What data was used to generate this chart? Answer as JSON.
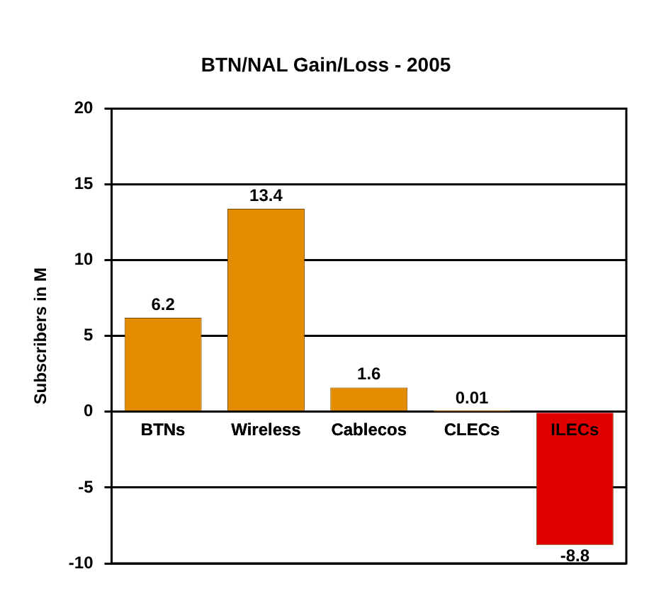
{
  "chart_data": {
    "type": "bar",
    "title": "BTN/NAL Gain/Loss - 2005",
    "ylabel": "Subscribers in M",
    "categories": [
      "BTNs",
      "Wireless",
      "Cablecos",
      "CLECs",
      "ILECs"
    ],
    "values": [
      6.2,
      13.4,
      1.6,
      0.01,
      -8.8
    ],
    "colors": [
      "#e38c00",
      "#e38c00",
      "#e38c00",
      "#e38c00",
      "#e00000"
    ],
    "ylim": [
      -10,
      20
    ],
    "yticks": [
      -10,
      -5,
      0,
      5,
      10,
      15,
      20
    ],
    "grid": "y",
    "data_labels": true,
    "legend": false
  }
}
